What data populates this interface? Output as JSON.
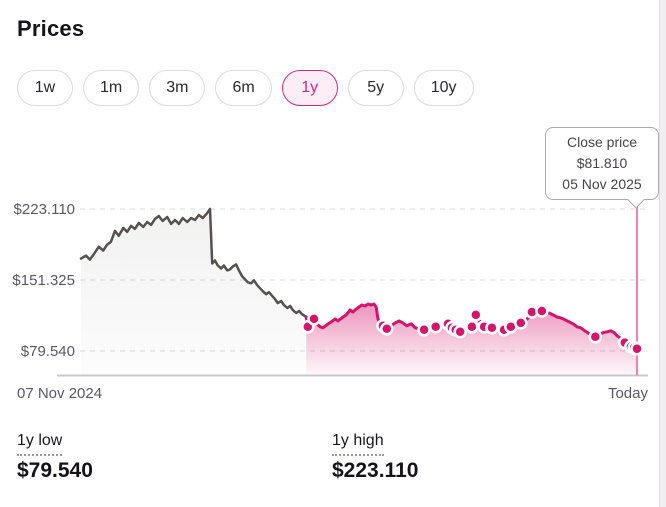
{
  "page": {
    "title": "Prices"
  },
  "ranges": [
    {
      "label": "1w",
      "selected": false
    },
    {
      "label": "1m",
      "selected": false
    },
    {
      "label": "3m",
      "selected": false
    },
    {
      "label": "6m",
      "selected": false
    },
    {
      "label": "1y",
      "selected": true
    },
    {
      "label": "5y",
      "selected": false
    },
    {
      "label": "10y",
      "selected": false
    }
  ],
  "tooltip": {
    "title": "Close price",
    "price": "$81.810",
    "date": "05 Nov 2025"
  },
  "axis": {
    "y_tick_labels": [
      "$223.110",
      "$151.325",
      "$79.540"
    ],
    "x_start": "07 Nov 2024",
    "x_end": "Today"
  },
  "stats": {
    "low": {
      "label": "1y low",
      "value": "$79.540"
    },
    "high": {
      "label": "1y high",
      "value": "$223.110"
    }
  },
  "colors": {
    "accent": "#e0257f",
    "accent_bg": "#fdeef6",
    "past_line": "#56504e",
    "recent_line": "#d5156b",
    "hover_line": "#fb7cb6",
    "grid": "#e2e0e3",
    "axis": "#c9c7cc",
    "text_muted": "#5b5664",
    "text_dark": "#17151a"
  },
  "chart_data": {
    "type": "area",
    "title": "Prices",
    "unit": "USD",
    "x_range": [
      "07 Nov 2024",
      "05 Nov 2025 (Today)"
    ],
    "y_ticks": [
      223.11,
      151.325,
      79.54
    ],
    "ylim": [
      54,
      237
    ],
    "grid": "dashed-horizontal",
    "low_1y": 79.54,
    "high_1y": 223.11,
    "close": {
      "price": 81.81,
      "date": "05 Nov 2025"
    },
    "series": [
      {
        "name": "historical",
        "style": "gray-area",
        "points": [
          [
            0,
            173
          ],
          [
            0.009,
            176
          ],
          [
            0.016,
            172
          ],
          [
            0.025,
            179
          ],
          [
            0.032,
            185
          ],
          [
            0.04,
            181
          ],
          [
            0.047,
            187
          ],
          [
            0.054,
            190
          ],
          [
            0.061,
            201
          ],
          [
            0.068,
            196
          ],
          [
            0.076,
            204
          ],
          [
            0.083,
            200
          ],
          [
            0.09,
            206
          ],
          [
            0.097,
            203
          ],
          [
            0.104,
            209
          ],
          [
            0.112,
            205
          ],
          [
            0.119,
            210
          ],
          [
            0.126,
            207
          ],
          [
            0.133,
            213
          ],
          [
            0.14,
            216
          ],
          [
            0.147,
            211
          ],
          [
            0.155,
            215
          ],
          [
            0.162,
            208
          ],
          [
            0.169,
            212
          ],
          [
            0.176,
            208
          ],
          [
            0.183,
            214
          ],
          [
            0.191,
            210
          ],
          [
            0.198,
            214
          ],
          [
            0.205,
            212
          ],
          [
            0.212,
            217
          ],
          [
            0.219,
            214
          ],
          [
            0.227,
            219
          ],
          [
            0.232,
            223.11
          ],
          [
            0.236,
            168
          ],
          [
            0.241,
            171
          ],
          [
            0.246,
            166
          ],
          [
            0.252,
            163
          ],
          [
            0.257,
            166
          ],
          [
            0.263,
            161
          ],
          [
            0.268,
            162
          ],
          [
            0.273,
            165
          ],
          [
            0.279,
            167
          ],
          [
            0.284,
            161
          ],
          [
            0.29,
            155
          ],
          [
            0.295,
            152
          ],
          [
            0.3,
            149
          ],
          [
            0.306,
            148
          ],
          [
            0.311,
            151
          ],
          [
            0.317,
            146
          ],
          [
            0.322,
            143
          ],
          [
            0.327,
            140
          ],
          [
            0.333,
            137
          ],
          [
            0.338,
            139
          ],
          [
            0.344,
            135
          ],
          [
            0.349,
            132
          ],
          [
            0.354,
            128
          ],
          [
            0.36,
            130
          ],
          [
            0.365,
            126
          ],
          [
            0.371,
            123
          ],
          [
            0.376,
            125
          ],
          [
            0.381,
            121
          ],
          [
            0.387,
            118
          ],
          [
            0.392,
            120
          ],
          [
            0.397,
            117
          ],
          [
            0.405,
            114
          ]
        ]
      },
      {
        "name": "highlighted-recent",
        "style": "pink-area-with-markers",
        "points": [
          [
            0.405,
            114
          ],
          [
            0.408,
            104
          ],
          [
            0.414,
            101
          ],
          [
            0.419,
            112
          ],
          [
            0.424,
            107
          ],
          [
            0.43,
            104
          ],
          [
            0.435,
            103
          ],
          [
            0.442,
            106
          ],
          [
            0.45,
            109
          ],
          [
            0.457,
            112
          ],
          [
            0.462,
            110
          ],
          [
            0.469,
            113
          ],
          [
            0.477,
            116
          ],
          [
            0.484,
            121
          ],
          [
            0.489,
            119
          ],
          [
            0.495,
            122
          ],
          [
            0.5,
            124
          ],
          [
            0.505,
            126
          ],
          [
            0.511,
            125
          ],
          [
            0.516,
            127
          ],
          [
            0.522,
            126
          ],
          [
            0.527,
            127
          ],
          [
            0.531,
            124
          ],
          [
            0.534,
            112
          ],
          [
            0.54,
            106
          ],
          [
            0.543,
            105
          ],
          [
            0.55,
            102
          ],
          [
            0.558,
            105
          ],
          [
            0.565,
            108
          ],
          [
            0.572,
            110
          ],
          [
            0.579,
            108
          ],
          [
            0.586,
            105
          ],
          [
            0.594,
            107
          ],
          [
            0.601,
            103
          ],
          [
            0.608,
            102
          ],
          [
            0.617,
            101
          ],
          [
            0.624,
            103
          ],
          [
            0.631,
            104
          ],
          [
            0.638,
            104
          ],
          [
            0.646,
            105
          ],
          [
            0.653,
            106
          ],
          [
            0.66,
            107
          ],
          [
            0.667,
            103
          ],
          [
            0.674,
            101
          ],
          [
            0.682,
            99
          ],
          [
            0.689,
            98
          ],
          [
            0.696,
            101
          ],
          [
            0.703,
            104
          ],
          [
            0.71,
            116
          ],
          [
            0.718,
            109
          ],
          [
            0.725,
            104
          ],
          [
            0.732,
            102
          ],
          [
            0.739,
            103
          ],
          [
            0.746,
            102
          ],
          [
            0.754,
            103
          ],
          [
            0.761,
            101
          ],
          [
            0.768,
            103
          ],
          [
            0.773,
            104
          ],
          [
            0.781,
            106
          ],
          [
            0.786,
            105
          ],
          [
            0.791,
            108
          ],
          [
            0.799,
            110
          ],
          [
            0.806,
            114
          ],
          [
            0.811,
            119
          ],
          [
            0.818,
            120
          ],
          [
            0.824,
            119
          ],
          [
            0.829,
            120
          ],
          [
            0.835,
            118
          ],
          [
            0.842,
            118
          ],
          [
            0.849,
            116
          ],
          [
            0.856,
            114
          ],
          [
            0.863,
            113
          ],
          [
            0.871,
            111
          ],
          [
            0.878,
            109
          ],
          [
            0.885,
            107
          ],
          [
            0.892,
            104
          ],
          [
            0.899,
            103
          ],
          [
            0.906,
            100
          ],
          [
            0.914,
            97
          ],
          [
            0.919,
            96
          ],
          [
            0.925,
            94
          ],
          [
            0.932,
            96
          ],
          [
            0.939,
            98
          ],
          [
            0.946,
            99
          ],
          [
            0.953,
            100
          ],
          [
            0.959,
            98
          ],
          [
            0.964,
            95
          ],
          [
            0.969,
            93
          ],
          [
            0.975,
            90
          ],
          [
            0.978,
            88
          ],
          [
            0.984,
            86
          ],
          [
            0.989,
            84
          ],
          [
            0.995,
            83
          ],
          [
            1,
            81.81
          ]
        ],
        "markers": [
          [
            0.408,
            104
          ],
          [
            0.419,
            112
          ],
          [
            0.543,
            105
          ],
          [
            0.55,
            102
          ],
          [
            0.617,
            101
          ],
          [
            0.638,
            104
          ],
          [
            0.66,
            107
          ],
          [
            0.667,
            103
          ],
          [
            0.674,
            101
          ],
          [
            0.682,
            99
          ],
          [
            0.703,
            104
          ],
          [
            0.71,
            116
          ],
          [
            0.725,
            104
          ],
          [
            0.739,
            103
          ],
          [
            0.761,
            101
          ],
          [
            0.773,
            104
          ],
          [
            0.791,
            108
          ],
          [
            0.811,
            119
          ],
          [
            0.829,
            120
          ],
          [
            0.925,
            94
          ],
          [
            0.978,
            88
          ],
          [
            0.989,
            84
          ],
          [
            0.995,
            83
          ],
          [
            1,
            81.81
          ]
        ]
      }
    ]
  }
}
